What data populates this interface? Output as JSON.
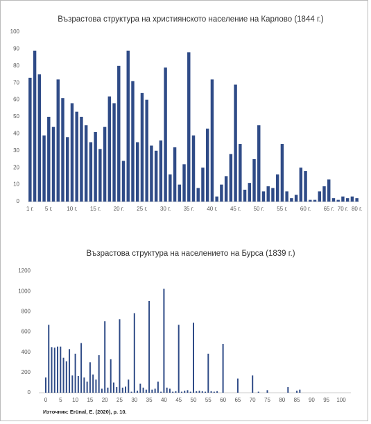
{
  "chart_data": [
    {
      "type": "bar",
      "title": "Възрастова структура на християнското население на Карлово (1844 г.)",
      "categories": [
        "1 г.",
        null,
        null,
        null,
        "5 г.",
        null,
        null,
        null,
        null,
        "10 г.",
        null,
        null,
        null,
        null,
        "15 г.",
        null,
        null,
        null,
        null,
        "20 г.",
        null,
        null,
        null,
        null,
        "25 г.",
        null,
        null,
        null,
        null,
        "30 г.",
        null,
        null,
        null,
        null,
        "35 г.",
        null,
        null,
        null,
        null,
        "40 г.",
        null,
        null,
        null,
        null,
        "45 г.",
        null,
        null,
        null,
        null,
        "50 г.",
        null,
        null,
        null,
        null,
        "55 г.",
        null,
        null,
        null,
        null,
        "60 г.",
        null,
        null,
        null,
        null,
        "65 г.",
        null,
        null,
        "70 г.",
        null,
        null,
        "80 г."
      ],
      "values": [
        73,
        89,
        75,
        39,
        50,
        44,
        72,
        61,
        38,
        58,
        53,
        50,
        45,
        35,
        41,
        31,
        44,
        62,
        58,
        80,
        24,
        89,
        71,
        35,
        64,
        60,
        33,
        30,
        36,
        79,
        16,
        32,
        10,
        22,
        88,
        39,
        8,
        20,
        43,
        72,
        3,
        10,
        15,
        28,
        69,
        34,
        7,
        11,
        25,
        45,
        6,
        9,
        8,
        16,
        34,
        6,
        2,
        4,
        20,
        18,
        1,
        1,
        6,
        9,
        13,
        2,
        1,
        3,
        2,
        3,
        2
      ],
      "color": "#2f4b87",
      "ylim": [
        0,
        100
      ],
      "yticks": [
        0,
        10,
        20,
        30,
        40,
        50,
        60,
        70,
        80,
        90,
        100
      ],
      "grid": false
    },
    {
      "type": "bar",
      "title": "Възрастова структура на населението на Бурса (1839 г.)",
      "x": [
        0,
        1,
        2,
        3,
        4,
        5,
        6,
        7,
        8,
        9,
        10,
        11,
        12,
        13,
        14,
        15,
        16,
        17,
        18,
        19,
        20,
        21,
        22,
        23,
        24,
        25,
        26,
        27,
        28,
        29,
        30,
        31,
        32,
        33,
        34,
        35,
        36,
        37,
        38,
        39,
        40,
        41,
        42,
        43,
        44,
        45,
        46,
        47,
        48,
        49,
        50,
        51,
        52,
        53,
        54,
        55,
        56,
        57,
        58,
        60,
        65,
        70,
        72,
        75,
        82,
        85,
        86
      ],
      "values": [
        150,
        670,
        450,
        445,
        455,
        455,
        345,
        310,
        430,
        170,
        385,
        165,
        490,
        150,
        110,
        300,
        180,
        130,
        370,
        40,
        705,
        50,
        330,
        100,
        55,
        725,
        50,
        60,
        130,
        10,
        785,
        20,
        90,
        50,
        30,
        905,
        30,
        40,
        110,
        10,
        1025,
        50,
        40,
        10,
        15,
        670,
        10,
        20,
        25,
        10,
        690,
        15,
        20,
        15,
        10,
        385,
        15,
        10,
        15,
        480,
        140,
        170,
        10,
        25,
        55,
        20,
        30
      ],
      "color": "#2f4b87",
      "xlim": [
        0,
        100
      ],
      "xticks": [
        0,
        5,
        10,
        15,
        20,
        25,
        30,
        35,
        40,
        45,
        50,
        55,
        60,
        65,
        70,
        75,
        80,
        85,
        90,
        95,
        100
      ],
      "ylim": [
        0,
        1200
      ],
      "yticks": [
        0,
        200,
        400,
        600,
        800,
        1000,
        1200
      ],
      "grid": false
    }
  ],
  "source": "Източник: Erünal, E. (2020), p. 10."
}
